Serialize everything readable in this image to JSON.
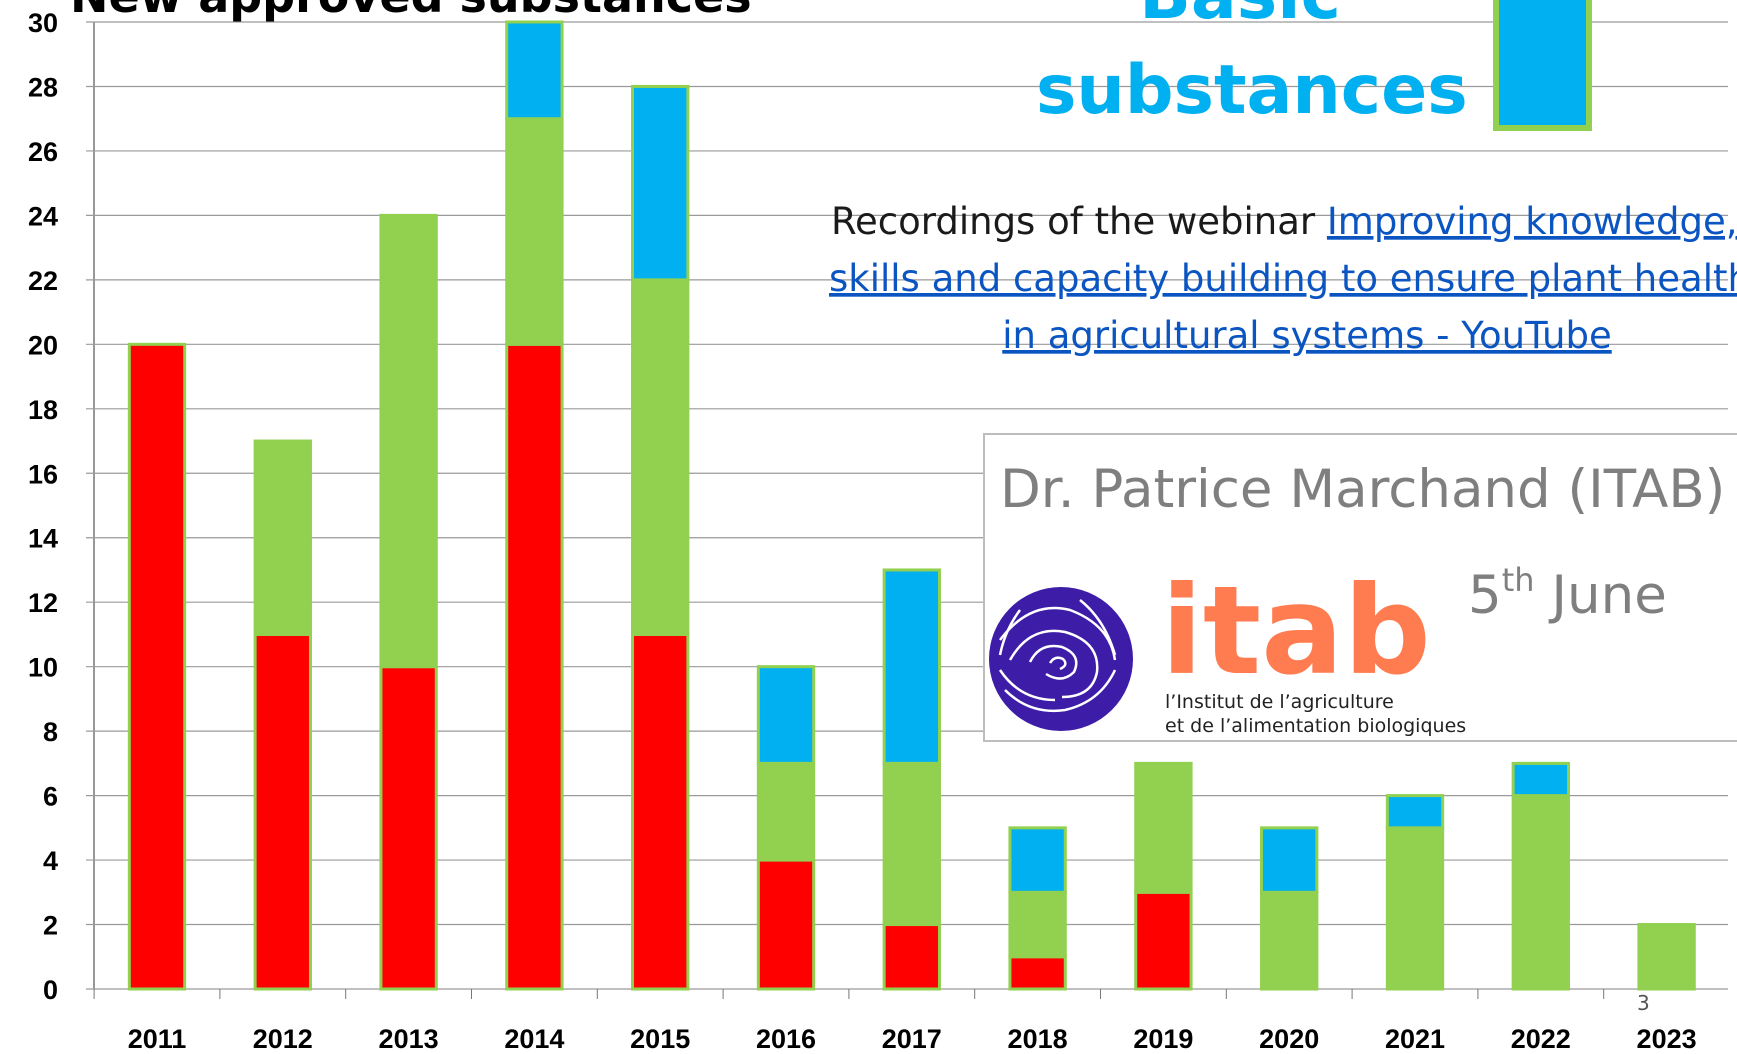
{
  "chart_data": {
    "type": "bar",
    "stacked": true,
    "title": "New approved substances",
    "categories": [
      "2011",
      "2012",
      "2013",
      "2014",
      "2015",
      "2016",
      "2017",
      "2018",
      "2019",
      "2020",
      "2021",
      "2022",
      "2023"
    ],
    "series": [
      {
        "color": "#ff0000",
        "values": [
          20,
          11,
          10,
          20,
          11,
          4,
          2,
          1,
          3,
          0,
          0,
          0,
          0
        ]
      },
      {
        "color": "#92d050",
        "values": [
          0,
          6,
          14,
          7,
          11,
          3,
          5,
          2,
          4,
          3,
          5,
          6,
          2
        ]
      },
      {
        "name": "Basic substances",
        "color": "#00b0f0",
        "values": [
          0,
          0,
          0,
          3,
          6,
          3,
          6,
          2,
          0,
          2,
          1,
          1,
          0
        ]
      }
    ],
    "ylim": [
      0,
      30
    ],
    "yticks": [
      0,
      2,
      4,
      6,
      8,
      10,
      12,
      14,
      16,
      18,
      20,
      22,
      24,
      26,
      28,
      30
    ],
    "grid": true
  },
  "webinar": {
    "prefix": "Recordings of the webinar ",
    "link_lines": [
      "Improving knowledge,",
      "skills and capacity building to ensure plant health",
      "in agricultural systems - YouTube"
    ]
  },
  "presenter": {
    "name": "Dr. Patrice Marchand (ITAB)",
    "day": "5",
    "ordinal": "th",
    "month": " June"
  },
  "logo": {
    "name": "itab",
    "line1": "l’Institut de l’agriculture",
    "line2": "et de l’alimentation biologiques"
  },
  "page_number": "3"
}
